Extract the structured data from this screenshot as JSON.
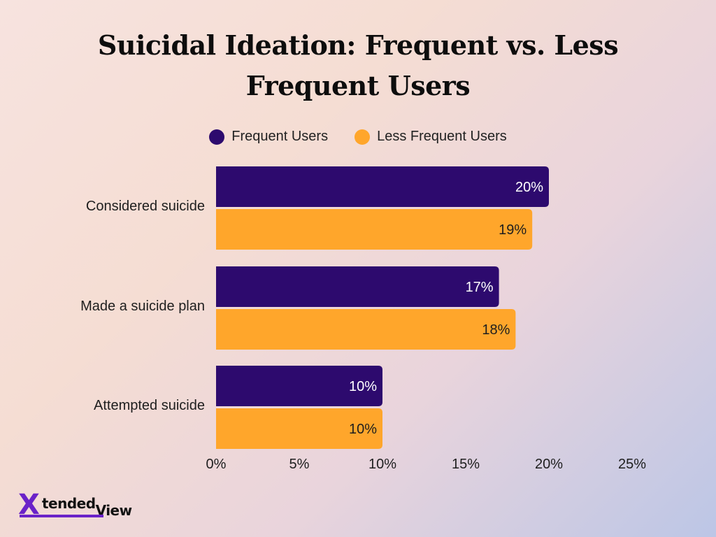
{
  "chart_data": {
    "type": "bar",
    "orientation": "horizontal",
    "title": "Suicidal Ideation: Frequent vs. Less Frequent Users",
    "categories": [
      "Considered suicide",
      "Made a suicide plan",
      "Attempted suicide"
    ],
    "series": [
      {
        "name": "Frequent Users",
        "color": "#2d0a6e",
        "label_color": "#ffffff",
        "values": [
          20,
          17,
          10
        ],
        "labels": [
          "20%",
          "17%",
          "10%"
        ]
      },
      {
        "name": "Less Frequent Users",
        "color": "#ffa62b",
        "label_color": "#1e1e1e",
        "values": [
          19,
          18,
          10
        ],
        "labels": [
          "19%",
          "18%",
          "10%"
        ]
      }
    ],
    "xlim": [
      0,
      25
    ],
    "xticks": [
      {
        "value": 0,
        "label": "0%"
      },
      {
        "value": 5,
        "label": "5%"
      },
      {
        "value": 10,
        "label": "10%"
      },
      {
        "value": 15,
        "label": "15%"
      },
      {
        "value": 20,
        "label": "20%"
      },
      {
        "value": 25,
        "label": "25%"
      }
    ],
    "grid": false,
    "legend_position": "top-center"
  },
  "logo": {
    "icon": "x-logo-icon",
    "part1": "tended",
    "part2": "View",
    "color": "#6a22c8"
  }
}
